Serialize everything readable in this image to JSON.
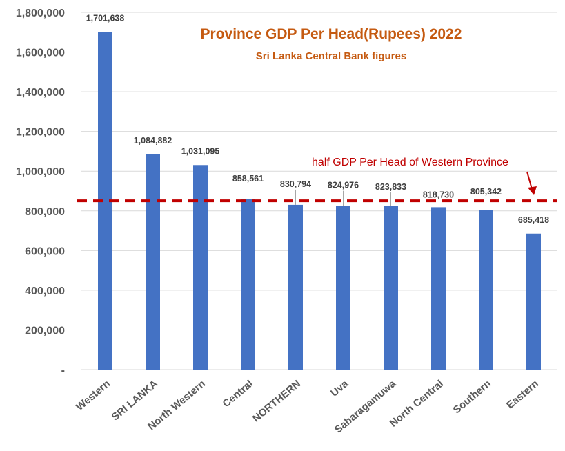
{
  "chart_data": {
    "type": "bar",
    "title": "Province GDP Per Head(Rupees) 2022",
    "subtitle": "Sri Lanka Central Bank figures",
    "categories": [
      "Western",
      "SRI LANKA",
      "North Western",
      "Central",
      "NORTHERN",
      "Uva",
      "Sabaragamuwa",
      "North Central",
      "Southern",
      "Eastern"
    ],
    "values": [
      1701638,
      1084882,
      1031095,
      858561,
      830794,
      824976,
      823833,
      818730,
      805342,
      685418
    ],
    "data_labels": [
      "1,701,638",
      "1,084,882",
      "1,031,095",
      "858,561",
      "830,794",
      "824,976",
      "823,833",
      "818,730",
      "805,342",
      "685,418"
    ],
    "yticks": [
      0,
      200000,
      400000,
      600000,
      800000,
      1000000,
      1200000,
      1400000,
      1600000,
      1800000
    ],
    "ytick_labels": [
      "-",
      "200,000",
      "400,000",
      "600,000",
      "800,000",
      "1,000,000",
      "1,200,000",
      "1,400,000",
      "1,600,000",
      "1,800,000"
    ],
    "ylim": [
      0,
      1800000
    ],
    "grid": true,
    "xlabel": "",
    "ylabel": "",
    "reference_line": {
      "value": 850819,
      "label": "half GDP Per Head of Western Province",
      "style": "dashed"
    },
    "colors": {
      "bar": "#4472c4",
      "title": "#c55a11",
      "reference": "#c00000",
      "grid": "#d9d9d9",
      "text": "#595959"
    }
  }
}
